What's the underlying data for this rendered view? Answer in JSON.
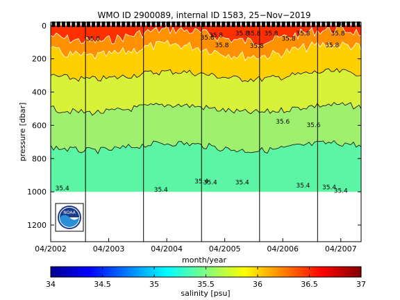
{
  "chart_data": {
    "type": "heatmap",
    "title": "WMO ID 2900089, internal ID 1583, 25−Nov−2019",
    "xlabel": "month/year",
    "ylabel": "pressure [dbar]",
    "x_tick_labels": [
      "04/2002",
      "04/2003",
      "04/2004",
      "04/2005",
      "04/2006",
      "04/2007"
    ],
    "x_range_years": [
      2002.25,
      2007.6
    ],
    "y_ticks": [
      0,
      200,
      400,
      600,
      800,
      1000,
      1200
    ],
    "ylim": [
      1300,
      -20
    ],
    "y_reversed": true,
    "colorbar": {
      "label": "salinity [psu]",
      "ticks": [
        34,
        34.5,
        35,
        35.5,
        36,
        36.5,
        37
      ],
      "range": [
        34,
        37
      ],
      "colormap": "jet"
    },
    "data_max_pressure": 1000,
    "salinity_layers": [
      {
        "pressure_top": 0,
        "pressure_bottom": 60,
        "salinity": 36.8,
        "color": "#ff3000"
      },
      {
        "pressure_top": 60,
        "pressure_bottom": 150,
        "salinity": 36.4,
        "color": "#ff9000"
      },
      {
        "pressure_top": 150,
        "pressure_bottom": 300,
        "salinity": 36.1,
        "color": "#ffd000"
      },
      {
        "pressure_top": 300,
        "pressure_bottom": 500,
        "salinity": 35.8,
        "color": "#d8f23a"
      },
      {
        "pressure_top": 500,
        "pressure_bottom": 730,
        "salinity": 35.5,
        "color": "#a0f070"
      },
      {
        "pressure_top": 730,
        "pressure_bottom": 1000,
        "salinity": 35.35,
        "color": "#5cf5a5"
      }
    ],
    "vertical_reference_dates": [
      2002.85,
      2003.85,
      2004.85,
      2005.85,
      2006.85
    ],
    "contour_labels": [
      {
        "text": "35.8",
        "date": 2002.98,
        "pressure": 90
      },
      {
        "text": "35.8",
        "date": 2004.95,
        "pressure": 85
      },
      {
        "text": "35.8",
        "date": 2005.1,
        "pressure": 70
      },
      {
        "text": "35.8",
        "date": 2005.2,
        "pressure": 130
      },
      {
        "text": "35.8",
        "date": 2005.55,
        "pressure": 60
      },
      {
        "text": "35.8",
        "date": 2005.75,
        "pressure": 60
      },
      {
        "text": "35.8",
        "date": 2005.8,
        "pressure": 135
      },
      {
        "text": "35.8",
        "date": 2006.05,
        "pressure": 60
      },
      {
        "text": "35.8",
        "date": 2006.35,
        "pressure": 90
      },
      {
        "text": "35.8",
        "date": 2006.6,
        "pressure": 60
      },
      {
        "text": "35.8",
        "date": 2007.2,
        "pressure": 60
      },
      {
        "text": "35.8",
        "date": 2007.1,
        "pressure": 130
      },
      {
        "text": "35.6",
        "date": 2006.25,
        "pressure": 590
      },
      {
        "text": "35.6",
        "date": 2006.78,
        "pressure": 610
      },
      {
        "text": "35.4",
        "date": 2002.45,
        "pressure": 990
      },
      {
        "text": "35.4",
        "date": 2004.15,
        "pressure": 1000
      },
      {
        "text": "35.4",
        "date": 2004.85,
        "pressure": 950
      },
      {
        "text": "35.4",
        "date": 2005.0,
        "pressure": 955
      },
      {
        "text": "35.4",
        "date": 2005.55,
        "pressure": 955
      },
      {
        "text": "35.4",
        "date": 2006.6,
        "pressure": 975
      },
      {
        "text": "35.4",
        "date": 2007.05,
        "pressure": 985
      },
      {
        "text": "35.4",
        "date": 2007.25,
        "pressure": 1005
      }
    ]
  },
  "logo": {
    "text": "NOAA"
  }
}
